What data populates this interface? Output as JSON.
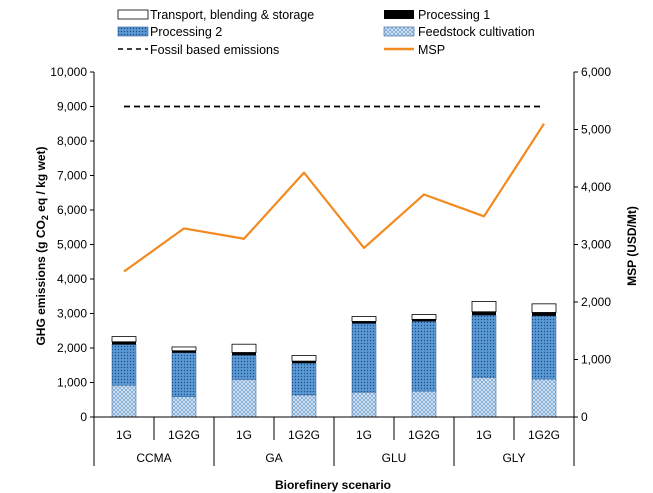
{
  "chart_data": {
    "type": "bar",
    "subtype": "stacked-bar-with-line",
    "title": "",
    "categories": [
      {
        "label": "1G",
        "group": "CCMA"
      },
      {
        "label": "1G2G",
        "group": "CCMA"
      },
      {
        "label": "1G",
        "group": "GA"
      },
      {
        "label": "1G2G",
        "group": "GA"
      },
      {
        "label": "1G",
        "group": "GLU"
      },
      {
        "label": "1G2G",
        "group": "GLU"
      },
      {
        "label": "1G",
        "group": "GLY"
      },
      {
        "label": "1G2G",
        "group": "GLY"
      }
    ],
    "groups": [
      "CCMA",
      "GA",
      "GLU",
      "GLY"
    ],
    "series": [
      {
        "name": "Feedstock cultivation",
        "axis": "left",
        "kind": "bar",
        "pattern": "crosshatch",
        "color": "#8fb6dc",
        "values": [
          920,
          590,
          1090,
          640,
          720,
          750,
          1150,
          1100
        ]
      },
      {
        "name": "Processing 2",
        "axis": "left",
        "kind": "bar",
        "pattern": "dots",
        "color": "#3d7cc3",
        "values": [
          1180,
          1270,
          700,
          920,
          1990,
          2020,
          1800,
          1830
        ]
      },
      {
        "name": "Processing 1",
        "axis": "left",
        "kind": "bar",
        "color": "#000000",
        "values": [
          80,
          60,
          80,
          60,
          60,
          60,
          100,
          100
        ]
      },
      {
        "name": "Transport, blending & storage",
        "axis": "left",
        "kind": "bar",
        "color": "#ffffff",
        "values": [
          150,
          110,
          240,
          160,
          140,
          140,
          300,
          250
        ]
      },
      {
        "name": "Fossil based emissions",
        "axis": "left",
        "kind": "line",
        "style": "dashed",
        "color": "#000000",
        "values": [
          9000,
          9000,
          9000,
          9000,
          9000,
          9000,
          9000,
          9000
        ]
      },
      {
        "name": "MSP",
        "axis": "right",
        "kind": "line",
        "color": "#f28a1f",
        "values": [
          2530,
          3280,
          3100,
          4250,
          2940,
          3870,
          3490,
          5100
        ]
      }
    ],
    "legend_order": [
      "Transport, blending & storage",
      "Processing 1",
      "Processing 2",
      "Feedstock cultivation",
      "Fossil based emissions",
      "MSP"
    ],
    "legend_position": "top",
    "xlabel": "Biorefinery scenario",
    "ylabel_parts": {
      "pre": "GHG emissions (g CO",
      "sub": "2",
      "post": " eq / kg wet)"
    },
    "y2label": "MSP (USD/Mt)",
    "ylim": [
      0,
      10000
    ],
    "yticks": [
      0,
      1000,
      2000,
      3000,
      4000,
      5000,
      6000,
      7000,
      8000,
      9000,
      10000
    ],
    "y2lim": [
      0,
      6000
    ],
    "y2ticks": [
      0,
      1000,
      2000,
      3000,
      4000,
      5000,
      6000
    ],
    "grid": false
  }
}
